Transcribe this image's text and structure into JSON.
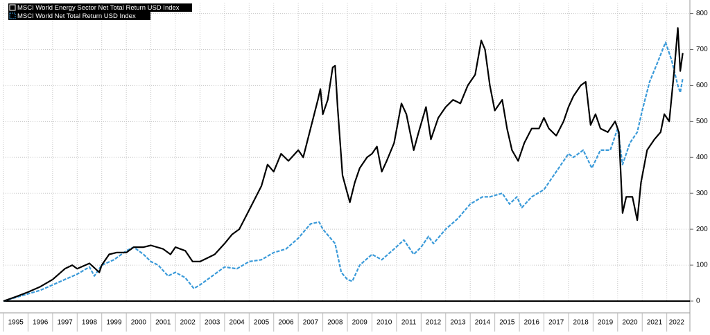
{
  "chart_data": {
    "type": "line",
    "xlim": [
      1995,
      2022.8
    ],
    "xticks": [
      1995,
      1996,
      1997,
      1998,
      1999,
      2000,
      2001,
      2002,
      2003,
      2004,
      2005,
      2006,
      2007,
      2008,
      2009,
      2010,
      2011,
      2012,
      2013,
      2014,
      2015,
      2016,
      2017,
      2018,
      2019,
      2020,
      2021,
      2022
    ],
    "ylim": [
      0,
      830
    ],
    "yticks": [
      0,
      100,
      200,
      300,
      400,
      500,
      600,
      700,
      800
    ],
    "grid": true,
    "legend": "top-left",
    "series": [
      {
        "name": "MSCI World Energy Sector Net Total Return USD Index",
        "color": "#000000",
        "x": [
          1995.0,
          1995.5,
          1996.0,
          1996.5,
          1997.0,
          1997.5,
          1997.8,
          1998.0,
          1998.5,
          1998.9,
          1999.0,
          1999.3,
          1999.6,
          2000.0,
          2000.3,
          2000.7,
          2001.0,
          2001.5,
          2001.8,
          2002.0,
          2002.4,
          2002.7,
          2003.0,
          2003.3,
          2003.6,
          2004.0,
          2004.3,
          2004.6,
          2004.9,
          2005.2,
          2005.5,
          2005.75,
          2006.0,
          2006.3,
          2006.6,
          2007.0,
          2007.2,
          2007.5,
          2007.8,
          2007.9,
          2008.0,
          2008.2,
          2008.4,
          2008.5,
          2008.6,
          2008.8,
          2009.0,
          2009.1,
          2009.3,
          2009.5,
          2009.8,
          2010.0,
          2010.2,
          2010.4,
          2010.6,
          2010.9,
          2011.2,
          2011.4,
          2011.7,
          2011.9,
          2012.2,
          2012.4,
          2012.7,
          2013.0,
          2013.3,
          2013.6,
          2013.9,
          2014.2,
          2014.45,
          2014.6,
          2014.8,
          2015.0,
          2015.3,
          2015.5,
          2015.7,
          2015.95,
          2016.2,
          2016.5,
          2016.8,
          2017.0,
          2017.2,
          2017.5,
          2017.8,
          2018.0,
          2018.2,
          2018.5,
          2018.7,
          2018.9,
          2019.1,
          2019.3,
          2019.6,
          2019.9,
          2020.05,
          2020.2,
          2020.35,
          2020.6,
          2020.8,
          2020.95,
          2021.2,
          2021.5,
          2021.75,
          2021.9,
          2022.1,
          2022.3,
          2022.45,
          2022.55,
          2022.65
        ],
        "values": [
          0,
          12,
          25,
          40,
          60,
          90,
          100,
          90,
          105,
          80,
          100,
          130,
          135,
          135,
          150,
          150,
          155,
          145,
          130,
          150,
          140,
          110,
          110,
          120,
          130,
          160,
          185,
          200,
          240,
          280,
          320,
          380,
          360,
          410,
          390,
          420,
          400,
          480,
          560,
          590,
          520,
          560,
          650,
          655,
          540,
          350,
          300,
          275,
          330,
          370,
          400,
          410,
          430,
          360,
          390,
          440,
          550,
          520,
          420,
          470,
          540,
          450,
          510,
          540,
          560,
          550,
          600,
          630,
          725,
          700,
          600,
          530,
          560,
          480,
          420,
          390,
          440,
          480,
          480,
          510,
          480,
          460,
          500,
          540,
          570,
          600,
          610,
          490,
          520,
          480,
          470,
          500,
          470,
          245,
          290,
          290,
          225,
          330,
          420,
          450,
          470,
          520,
          500,
          640,
          760,
          640,
          690
        ]
      },
      {
        "name": "MSCI World Net Total Return USD Index",
        "color": "#3a9ad9",
        "x": [
          1995.0,
          1995.5,
          1996.0,
          1996.5,
          1997.0,
          1997.5,
          1998.0,
          1998.5,
          1998.7,
          1999.0,
          1999.5,
          2000.0,
          2000.3,
          2000.7,
          2001.0,
          2001.3,
          2001.7,
          2002.0,
          2002.4,
          2002.75,
          2003.0,
          2003.5,
          2004.0,
          2004.5,
          2005.0,
          2005.5,
          2006.0,
          2006.5,
          2007.0,
          2007.5,
          2007.85,
          2008.0,
          2008.5,
          2008.75,
          2009.0,
          2009.2,
          2009.5,
          2010.0,
          2010.4,
          2010.9,
          2011.3,
          2011.7,
          2012.0,
          2012.3,
          2012.5,
          2013.0,
          2013.5,
          2014.0,
          2014.5,
          2014.8,
          2015.3,
          2015.6,
          2015.9,
          2016.1,
          2016.5,
          2017.0,
          2017.5,
          2018.0,
          2018.2,
          2018.6,
          2018.95,
          2019.3,
          2019.7,
          2020.0,
          2020.2,
          2020.5,
          2020.8,
          2021.0,
          2021.3,
          2021.6,
          2021.95,
          2022.2,
          2022.45,
          2022.55,
          2022.65
        ],
        "values": [
          0,
          10,
          20,
          30,
          45,
          60,
          75,
          95,
          70,
          100,
          115,
          140,
          150,
          130,
          110,
          100,
          70,
          80,
          65,
          35,
          45,
          70,
          95,
          90,
          110,
          115,
          135,
          145,
          175,
          215,
          220,
          200,
          160,
          80,
          60,
          55,
          100,
          130,
          115,
          145,
          170,
          130,
          150,
          180,
          160,
          200,
          230,
          270,
          290,
          290,
          300,
          270,
          290,
          260,
          290,
          310,
          360,
          410,
          400,
          420,
          370,
          420,
          420,
          480,
          380,
          440,
          470,
          530,
          610,
          660,
          720,
          670,
          600,
          580,
          620
        ]
      }
    ]
  }
}
